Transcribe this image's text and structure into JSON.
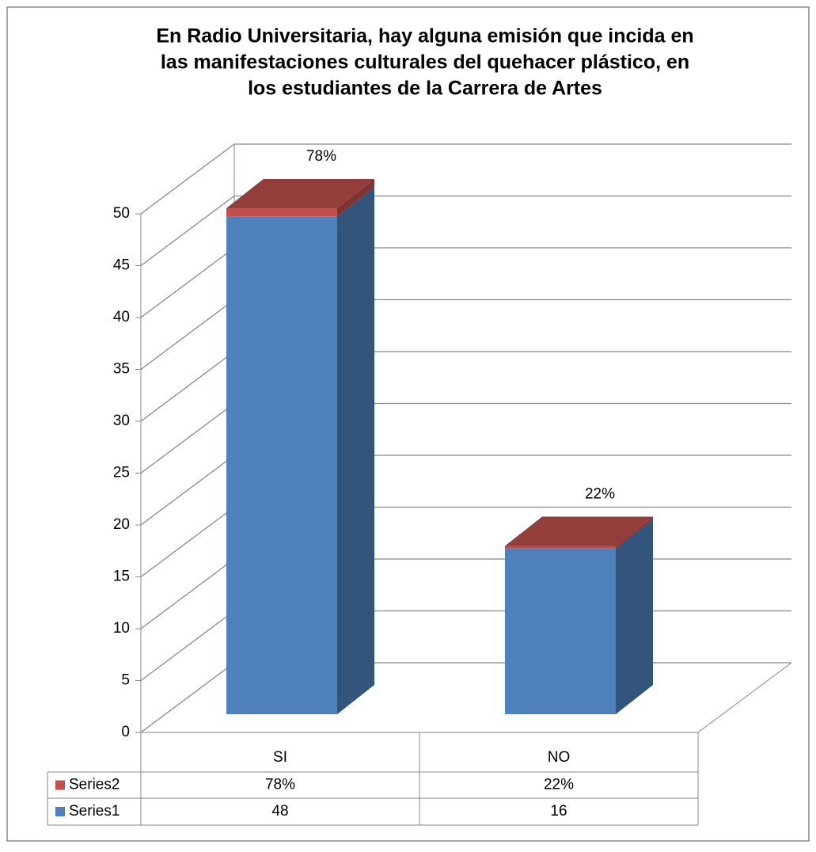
{
  "chart_data": {
    "type": "bar3d",
    "title": [
      "En  Radio Universitaria, hay alguna emisión que incida en",
      "las manifestaciones culturales del quehacer plástico, en",
      "los estudiantes de la Carrera de Artes"
    ],
    "categories": [
      "SI",
      "NO"
    ],
    "series": [
      {
        "name": "Series1",
        "color": "#4f81bd",
        "values": [
          48,
          16
        ]
      },
      {
        "name": "Series2",
        "color": "#c0504d",
        "values": [
          0.78,
          0.22
        ],
        "value_labels": [
          "78%",
          "22%"
        ]
      }
    ],
    "ylim": [
      0,
      50
    ],
    "yticks": [
      0,
      5,
      10,
      15,
      20,
      25,
      30,
      35,
      40,
      45,
      50
    ],
    "grid": true,
    "data_table": true
  }
}
